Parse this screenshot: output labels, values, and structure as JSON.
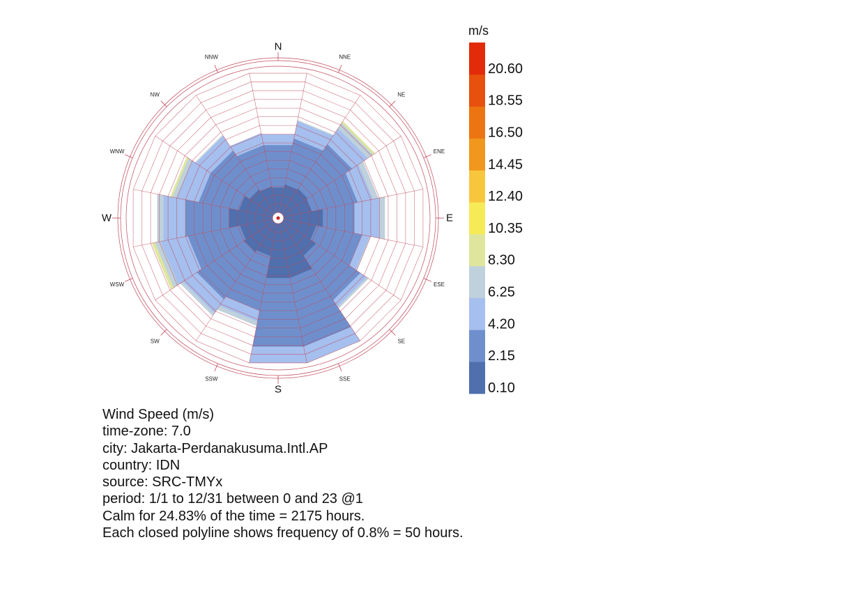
{
  "chart_data": {
    "type": "wind-rose",
    "directions": [
      "N",
      "NNE",
      "NE",
      "ENE",
      "E",
      "ESE",
      "SE",
      "SSE",
      "S",
      "SSW",
      "SW",
      "WSW",
      "W",
      "WNW",
      "NW",
      "NNW"
    ],
    "frequency_rings": 16,
    "ring_step_percent": 0.8,
    "calm_percent": 24.83,
    "speed_bins": [
      {
        "label": "0.10",
        "color": "#4f6fad"
      },
      {
        "label": "2.15",
        "color": "#6f8fcc"
      },
      {
        "label": "4.20",
        "color": "#a5bfee"
      },
      {
        "label": "6.25",
        "color": "#bfd1dc"
      },
      {
        "label": "8.30",
        "color": "#dfe59d"
      },
      {
        "label": "10.35",
        "color": "#f7ea57"
      },
      {
        "label": "12.40",
        "color": "#f8c63d"
      },
      {
        "label": "14.45",
        "color": "#f1971d"
      },
      {
        "label": "16.50",
        "color": "#ec7511"
      },
      {
        "label": "18.55",
        "color": "#e7500d"
      },
      {
        "label": "20.60",
        "color": "#e22b09"
      }
    ],
    "legend_unit": "m/s",
    "cumulative_rings_by_direction": [
      [
        2.3,
        6.2,
        7.2,
        7.2,
        7.2
      ],
      [
        2.6,
        6.8,
        8.4,
        8.5,
        8.5
      ],
      [
        2.7,
        7.5,
        9.2,
        9.8,
        10.0
      ],
      [
        2.6,
        6.8,
        8.2,
        8.7,
        8.7
      ],
      [
        3.6,
        6.5,
        8.8,
        9.3,
        9.3
      ],
      [
        3.0,
        7.2,
        7.9,
        8.0,
        8.0
      ],
      [
        3.6,
        8.4,
        9.1,
        9.3,
        9.3
      ],
      [
        5.0,
        11.3,
        14.2,
        14.4,
        14.4
      ],
      [
        5.0,
        11.3,
        14.2,
        14.4,
        14.4
      ],
      [
        3.0,
        8.0,
        9.0,
        9.4,
        9.4
      ],
      [
        3.2,
        8.3,
        9.8,
        10.1,
        10.1
      ],
      [
        3.0,
        7.8,
        10.3,
        10.8,
        11.1
      ],
      [
        4.0,
        8.0,
        10.0,
        10.6,
        10.6
      ],
      [
        3.1,
        6.8,
        8.8,
        9.2,
        9.4
      ],
      [
        2.6,
        6.8,
        8.4,
        8.5,
        8.5
      ],
      [
        2.4,
        6.2,
        7.3,
        7.3,
        7.3
      ]
    ]
  },
  "info": {
    "line1": "Wind Speed (m/s)",
    "line2": "time-zone: 7.0",
    "line3": "city: Jakarta-Perdanakusuma.Intl.AP",
    "line4": "country: IDN",
    "line5": "source: SRC-TMYx",
    "line6": "period: 1/1 to 12/31 between 0 and 23 @1",
    "line7": "Calm for 24.83% of the time = 2175 hours.",
    "line8": "Each closed polyline shows frequency of 0.8% = 50 hours."
  }
}
